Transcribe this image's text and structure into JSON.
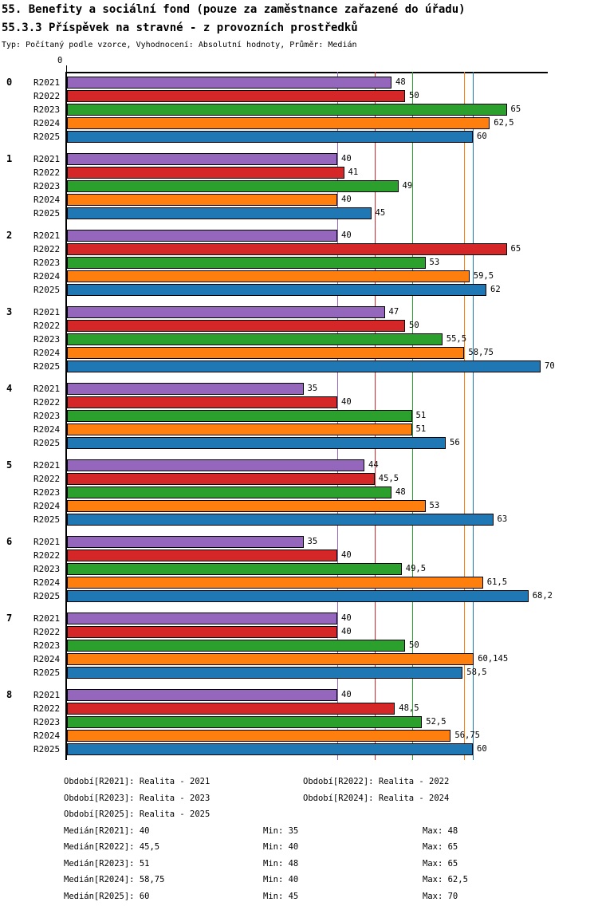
{
  "header": {
    "title": "55. Benefity a sociální fond (pouze za zaměstnance zařazené do úřadu)",
    "subtitle": "55.3.3 Příspěvek na stravné - z provozních prostředků",
    "meta": "Typ: Počítaný podle vzorce, Vyhodnocení: Absolutní hodnoty, Průměr: Medián"
  },
  "chart_data": {
    "type": "bar",
    "orientation": "horizontal",
    "origin_tick_label": "0",
    "xlim": [
      0,
      71
    ],
    "grid": "median-reference-lines-only",
    "series": [
      "R2021",
      "R2022",
      "R2023",
      "R2024",
      "R2025"
    ],
    "colors": {
      "R2021": "#9467bd",
      "R2022": "#d62728",
      "R2023": "#2ca02c",
      "R2024": "#ff7f0e",
      "R2025": "#1f77b4"
    },
    "groups": [
      {
        "label": "0",
        "values": [
          48,
          50,
          65,
          62.5,
          60
        ],
        "value_labels": [
          "48",
          "50",
          "65",
          "62,5",
          "60"
        ]
      },
      {
        "label": "1",
        "values": [
          40,
          41,
          49,
          40,
          45
        ],
        "value_labels": [
          "40",
          "41",
          "49",
          "40",
          "45"
        ]
      },
      {
        "label": "2",
        "values": [
          40,
          65,
          53,
          59.5,
          62
        ],
        "value_labels": [
          "40",
          "65",
          "53",
          "59,5",
          "62"
        ]
      },
      {
        "label": "3",
        "values": [
          47,
          50,
          55.5,
          58.75,
          70
        ],
        "value_labels": [
          "47",
          "50",
          "55,5",
          "58,75",
          "70"
        ]
      },
      {
        "label": "4",
        "values": [
          35,
          40,
          51,
          51,
          56
        ],
        "value_labels": [
          "35",
          "40",
          "51",
          "51",
          "56"
        ]
      },
      {
        "label": "5",
        "values": [
          44,
          45.5,
          48,
          53,
          63
        ],
        "value_labels": [
          "44",
          "45,5",
          "48",
          "53",
          "63"
        ]
      },
      {
        "label": "6",
        "values": [
          35,
          40,
          49.5,
          61.5,
          68.2
        ],
        "value_labels": [
          "35",
          "40",
          "49,5",
          "61,5",
          "68,2"
        ]
      },
      {
        "label": "7",
        "values": [
          40,
          40,
          50,
          60.145,
          58.5
        ],
        "value_labels": [
          "40",
          "40",
          "50",
          "60,145",
          "58,5"
        ]
      },
      {
        "label": "8",
        "values": [
          40,
          48.5,
          52.5,
          56.75,
          60
        ],
        "value_labels": [
          "40",
          "48,5",
          "52,5",
          "56,75",
          "60"
        ]
      }
    ],
    "median_lines": [
      {
        "series": "R2021",
        "value": 40
      },
      {
        "series": "R2022",
        "value": 45.5
      },
      {
        "series": "R2023",
        "value": 51
      },
      {
        "series": "R2024",
        "value": 58.75
      },
      {
        "series": "R2025",
        "value": 60
      }
    ]
  },
  "footer": {
    "periods": [
      [
        "Období[R2021]: Realita - 2021",
        "Období[R2022]: Realita - 2022"
      ],
      [
        "Období[R2023]: Realita - 2023",
        "Období[R2024]: Realita - 2024"
      ],
      [
        "Období[R2025]: Realita - 2025"
      ]
    ],
    "stats": [
      {
        "median": "Medián[R2021]: 40",
        "min": "Min: 35",
        "max": "Max: 48"
      },
      {
        "median": "Medián[R2022]: 45,5",
        "min": "Min: 40",
        "max": "Max: 65"
      },
      {
        "median": "Medián[R2023]: 51",
        "min": "Min: 48",
        "max": "Max: 65"
      },
      {
        "median": "Medián[R2024]: 58,75",
        "min": "Min: 40",
        "max": "Max: 62,5"
      },
      {
        "median": "Medián[R2025]: 60",
        "min": "Min: 45",
        "max": "Max: 70"
      }
    ]
  }
}
